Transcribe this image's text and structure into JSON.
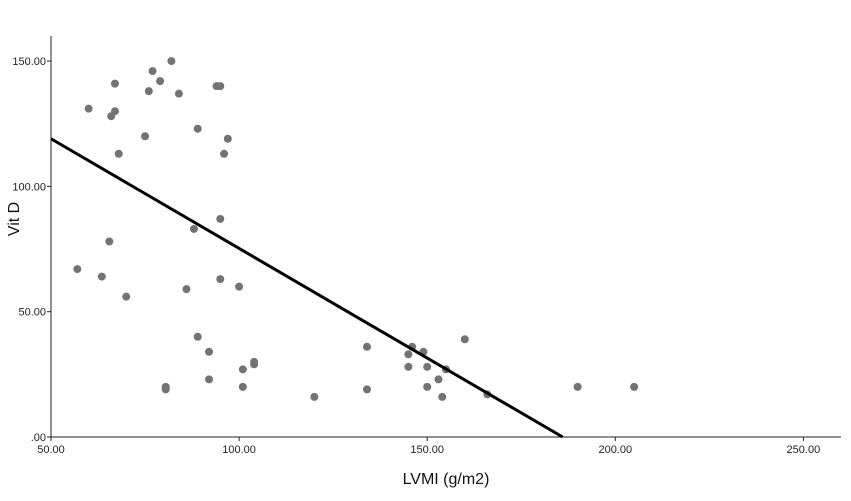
{
  "chart_data": {
    "type": "scatter",
    "title": "",
    "xlabel": "LVMI (g/m2)",
    "ylabel": "Vit D",
    "xlim": [
      50,
      260
    ],
    "ylim": [
      0,
      160
    ],
    "x_ticks": [
      50,
      100,
      150,
      200,
      250
    ],
    "x_tick_labels": [
      "50.00",
      "100.00",
      "150.00",
      "200.00",
      "250.00"
    ],
    "y_ticks": [
      0,
      50,
      100,
      150
    ],
    "y_tick_labels": [
      ".00",
      "50.00",
      "100.00",
      "150.00"
    ],
    "grid": false,
    "legend": "none",
    "point_color": "#737373",
    "line_color": "#000000",
    "points": [
      {
        "x": 57,
        "y": 67
      },
      {
        "x": 60,
        "y": 131
      },
      {
        "x": 63.5,
        "y": 64
      },
      {
        "x": 65.5,
        "y": 78
      },
      {
        "x": 66,
        "y": 128
      },
      {
        "x": 67,
        "y": 141
      },
      {
        "x": 67,
        "y": 130
      },
      {
        "x": 68,
        "y": 113
      },
      {
        "x": 70,
        "y": 56
      },
      {
        "x": 75,
        "y": 120
      },
      {
        "x": 76,
        "y": 138
      },
      {
        "x": 77,
        "y": 146
      },
      {
        "x": 79,
        "y": 142
      },
      {
        "x": 80.5,
        "y": 20
      },
      {
        "x": 80.5,
        "y": 19
      },
      {
        "x": 82,
        "y": 150
      },
      {
        "x": 84,
        "y": 137
      },
      {
        "x": 86,
        "y": 59
      },
      {
        "x": 88,
        "y": 83
      },
      {
        "x": 89,
        "y": 123
      },
      {
        "x": 89,
        "y": 40
      },
      {
        "x": 92,
        "y": 34
      },
      {
        "x": 92,
        "y": 23
      },
      {
        "x": 94,
        "y": 140
      },
      {
        "x": 95,
        "y": 140
      },
      {
        "x": 95,
        "y": 87
      },
      {
        "x": 95,
        "y": 63
      },
      {
        "x": 96,
        "y": 113
      },
      {
        "x": 97,
        "y": 119
      },
      {
        "x": 100,
        "y": 60
      },
      {
        "x": 101,
        "y": 27
      },
      {
        "x": 101,
        "y": 20
      },
      {
        "x": 104,
        "y": 29
      },
      {
        "x": 104,
        "y": 30
      },
      {
        "x": 120,
        "y": 16
      },
      {
        "x": 134,
        "y": 36
      },
      {
        "x": 134,
        "y": 19
      },
      {
        "x": 145,
        "y": 33
      },
      {
        "x": 145,
        "y": 28
      },
      {
        "x": 146,
        "y": 36
      },
      {
        "x": 149,
        "y": 34
      },
      {
        "x": 150,
        "y": 28
      },
      {
        "x": 150,
        "y": 20
      },
      {
        "x": 153,
        "y": 23
      },
      {
        "x": 154,
        "y": 16
      },
      {
        "x": 155,
        "y": 27
      },
      {
        "x": 160,
        "y": 39
      },
      {
        "x": 166,
        "y": 17
      },
      {
        "x": 190,
        "y": 20
      },
      {
        "x": 205,
        "y": 20
      }
    ],
    "fit_line": {
      "x": [
        50,
        186
      ],
      "y": [
        119,
        0
      ]
    }
  }
}
